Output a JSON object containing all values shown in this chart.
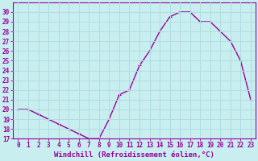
{
  "x": [
    0,
    1,
    2,
    3,
    4,
    5,
    6,
    7,
    8,
    9,
    10,
    11,
    12,
    13,
    14,
    15,
    16,
    17,
    18,
    19,
    20,
    21,
    22,
    23
  ],
  "y": [
    20,
    20,
    19.5,
    19,
    18.5,
    18,
    17.5,
    17,
    17,
    19,
    21.5,
    22,
    24.5,
    26,
    28,
    29.5,
    30,
    30,
    29,
    29,
    28,
    27,
    25,
    21
  ],
  "line_color": "#990099",
  "marker": "+",
  "background_color": "#c8eef0",
  "grid_color": "#b0dde0",
  "axis_color": "#990099",
  "tick_color": "#990099",
  "label_color": "#990099",
  "xlabel": "Windchill (Refroidissement éolien,°C)",
  "ylim": [
    17,
    31
  ],
  "yticks": [
    17,
    18,
    19,
    20,
    21,
    22,
    23,
    24,
    25,
    26,
    27,
    28,
    29,
    30
  ],
  "xlim": [
    -0.5,
    23.5
  ],
  "xticks": [
    0,
    1,
    2,
    3,
    4,
    5,
    6,
    7,
    8,
    9,
    10,
    11,
    12,
    13,
    14,
    15,
    16,
    17,
    18,
    19,
    20,
    21,
    22,
    23
  ],
  "xlabel_fontsize": 6.5,
  "tick_fontsize": 5.5,
  "line_width": 1.0,
  "marker_size": 3.5
}
